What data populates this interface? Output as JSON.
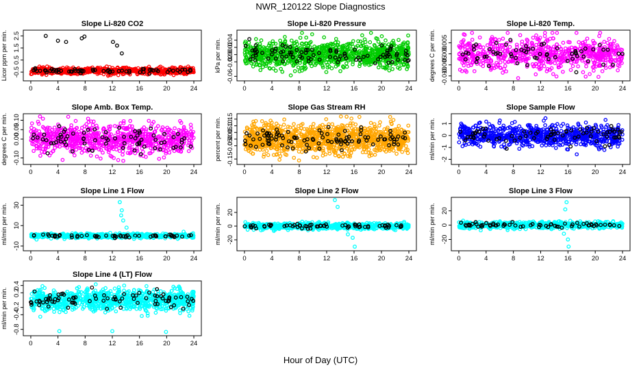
{
  "figure": {
    "title": "NWR_120122  Slope Diagnostics",
    "xlabel": "Hour of Day (UTC)"
  },
  "chart_data": [
    {
      "type": "scatter",
      "title": "Slope Li-820 CO2",
      "ylabel": "Licor ppm per min.",
      "color": "#ff0000",
      "yticks": [
        "-0.5",
        "0.5",
        "1.5",
        "2.5"
      ],
      "ytick_values": [
        -0.5,
        0.5,
        1.5,
        2.5
      ],
      "ylim": [
        -1.0,
        2.75
      ],
      "xticks": [
        "0",
        "4",
        "8",
        "12",
        "16",
        "20",
        "24"
      ],
      "xlim": [
        -0.5,
        24.5
      ],
      "outliers": [
        [
          2.2,
          2.5
        ],
        [
          4.0,
          2.1
        ],
        [
          5.2,
          2.0
        ],
        [
          7.5,
          2.3
        ],
        [
          7.9,
          2.45
        ],
        [
          12.1,
          2.0
        ],
        [
          12.7,
          1.7
        ],
        [
          13.4,
          1.05
        ]
      ],
      "points_summary": {
        "center": -0.4,
        "spread": 0.15,
        "n": 700
      }
    },
    {
      "type": "scatter",
      "title": "Slope Li-820 Pressure",
      "ylabel": "kPa per min.",
      "color": "#00cc00",
      "yticks": [
        "-0.06",
        "-0.02",
        "0.00",
        "0.02",
        "0.04"
      ],
      "ytick_values": [
        -0.06,
        -0.02,
        0.0,
        0.02,
        0.04
      ],
      "ylim": [
        -0.065,
        0.06
      ],
      "xticks": [
        "0",
        "4",
        "8",
        "12",
        "16",
        "20",
        "24"
      ],
      "xlim": [
        -0.5,
        24.5
      ],
      "points_summary": {
        "center": 0.0,
        "spread": 0.02,
        "n": 1000
      }
    },
    {
      "type": "scatter",
      "title": "Slope Li-820 Temp.",
      "ylabel": "degrees C per min.",
      "color": "#ff00ff",
      "yticks": [
        "-0.010",
        "-0.005",
        "0.000",
        "0.005"
      ],
      "ytick_values": [
        -0.01,
        -0.005,
        0.0,
        0.005
      ],
      "ylim": [
        -0.011,
        0.0095
      ],
      "xticks": [
        "0",
        "4",
        "8",
        "12",
        "16",
        "20",
        "24"
      ],
      "xlim": [
        -0.5,
        24.5
      ],
      "points_summary": {
        "center": 0.0,
        "spread": 0.004,
        "n": 700
      }
    },
    {
      "type": "scatter",
      "title": "Slope Amb. Box Temp.",
      "ylabel": "degrees C per min.",
      "color": "#ff00ff",
      "yticks": [
        "-0.10",
        "0.00",
        "0.05",
        "0.10"
      ],
      "ytick_values": [
        -0.1,
        0.0,
        0.05,
        0.1
      ],
      "ylim": [
        -0.12,
        0.12
      ],
      "xticks": [
        "0",
        "4",
        "8",
        "12",
        "16",
        "20",
        "24"
      ],
      "xlim": [
        -0.5,
        24.5
      ],
      "points_summary": {
        "center": 0.0,
        "spread": 0.045,
        "n": 800
      }
    },
    {
      "type": "scatter",
      "title": "Slope Gas Stream RH",
      "ylabel": "percent per min.",
      "color": "#ffa500",
      "yticks": [
        "-0.15",
        "-0.05",
        "0.00",
        "0.05",
        "0.10",
        "0.15"
      ],
      "ytick_values": [
        -0.15,
        -0.05,
        0.0,
        0.05,
        0.1,
        0.15
      ],
      "ylim": [
        -0.17,
        0.17
      ],
      "xticks": [
        "0",
        "4",
        "8",
        "12",
        "16",
        "20",
        "24"
      ],
      "xlim": [
        -0.5,
        24.5
      ],
      "points_summary": {
        "center": 0.0,
        "spread": 0.06,
        "n": 1100
      }
    },
    {
      "type": "scatter",
      "title": "Slope Sample Flow",
      "ylabel": "ml/min per min.",
      "color": "#0000ff",
      "yticks": [
        "-2",
        "-1",
        "0",
        "1"
      ],
      "ytick_values": [
        -2,
        -1,
        0,
        1
      ],
      "ylim": [
        -2.2,
        1.6
      ],
      "xticks": [
        "0",
        "4",
        "8",
        "12",
        "16",
        "20",
        "24"
      ],
      "xlim": [
        -0.5,
        24.5
      ],
      "points_summary": {
        "center": 0.0,
        "spread": 0.5,
        "n": 800
      }
    },
    {
      "type": "scatter",
      "title": "Slope Line 1 Flow",
      "ylabel": "ml/min per min.",
      "color": "#00ffff",
      "yticks": [
        "-10",
        "10",
        "30"
      ],
      "ytick_values": [
        -10,
        10,
        30
      ],
      "ylim": [
        -12,
        35
      ],
      "xticks": [
        "0",
        "4",
        "8",
        "12",
        "16",
        "20",
        "24"
      ],
      "xlim": [
        -0.5,
        24.5
      ],
      "outliers": [
        [
          13.1,
          33
        ],
        [
          13.4,
          25
        ],
        [
          13.3,
          20
        ],
        [
          13.6,
          15
        ],
        [
          14.1,
          8
        ],
        [
          15.2,
          -3
        ]
      ],
      "points_summary": {
        "center": 0.0,
        "spread": 1.2,
        "n": 600
      }
    },
    {
      "type": "scatter",
      "title": "Slope Line 2 Flow",
      "ylabel": "ml/min per min.",
      "color": "#00ffff",
      "yticks": [
        "-20",
        "0",
        "20"
      ],
      "ytick_values": [
        -20,
        0,
        20
      ],
      "ylim": [
        -32,
        38
      ],
      "xticks": [
        "0",
        "4",
        "8",
        "12",
        "16",
        "20",
        "24"
      ],
      "xlim": [
        -0.5,
        24.5
      ],
      "outliers": [
        [
          13.2,
          38
        ],
        [
          13.6,
          28
        ],
        [
          15.1,
          -12
        ],
        [
          15.8,
          -17
        ],
        [
          16.1,
          -30
        ]
      ],
      "points_summary": {
        "center": 0.0,
        "spread": 2.5,
        "n": 700
      }
    },
    {
      "type": "scatter",
      "title": "Slope Line 3 Flow",
      "ylabel": "ml/min per min.",
      "color": "#00ffff",
      "yticks": [
        "-20",
        "0",
        "20"
      ],
      "ytick_values": [
        -20,
        0,
        20
      ],
      "ylim": [
        -32,
        35
      ],
      "xticks": [
        "0",
        "4",
        "8",
        "12",
        "16",
        "20",
        "24"
      ],
      "xlim": [
        -0.5,
        24.5
      ],
      "outliers": [
        [
          15.8,
          32
        ],
        [
          15.6,
          22
        ],
        [
          15.4,
          -12
        ],
        [
          16.0,
          -20
        ],
        [
          16.1,
          -30
        ]
      ],
      "points_summary": {
        "center": 0.0,
        "spread": 2.5,
        "n": 700
      }
    },
    {
      "type": "scatter",
      "title": "Slope Line 4 (LT) Flow",
      "ylabel": "ml/min per min.",
      "color": "#00ffff",
      "yticks": [
        "-0.8",
        "-0.4",
        "-0.2",
        "0.2",
        "0.4"
      ],
      "ytick_values": [
        -0.8,
        -0.4,
        -0.2,
        0.2,
        0.4
      ],
      "ylim": [
        -0.9,
        0.45
      ],
      "xticks": [
        "0",
        "4",
        "8",
        "12",
        "16",
        "20",
        "24"
      ],
      "xlim": [
        -0.5,
        24.5
      ],
      "outliers": [
        [
          4.2,
          -0.85
        ],
        [
          12.0,
          -0.85
        ],
        [
          19.9,
          -0.87
        ]
      ],
      "points_summary": {
        "center": 0.0,
        "spread": 0.16,
        "n": 900
      }
    }
  ]
}
